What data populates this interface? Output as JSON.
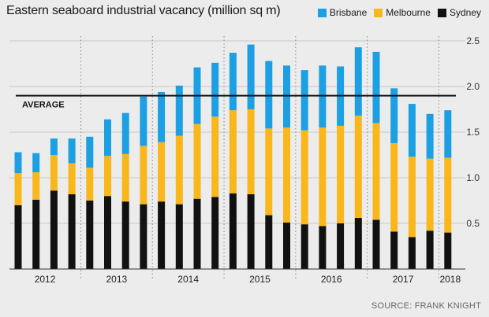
{
  "title": "Eastern seaboard industrial vacancy (million sq m)",
  "source": "SOURCE: FRANK KNIGHT",
  "chart_data": {
    "type": "bar",
    "stacked": true,
    "title": "Eastern seaboard industrial vacancy (million sq m)",
    "xlabel": "",
    "ylabel": "",
    "ylim": [
      0,
      2.5
    ],
    "yticks": [
      "0.5",
      "1.0",
      "1.5",
      "2.0",
      "2.5"
    ],
    "ytick_values": [
      0.5,
      1.0,
      1.5,
      2.0,
      2.5
    ],
    "grid": true,
    "legend_position": "top-right",
    "years": [
      "2012",
      "2013",
      "2014",
      "2015",
      "2016",
      "2017",
      "2018"
    ],
    "categories": [
      "2012 Q1",
      "2012 Q2",
      "2012 Q3",
      "2012 Q4",
      "2013 Q1",
      "2013 Q2",
      "2013 Q3",
      "2013 Q4",
      "2014 Q1",
      "2014 Q2",
      "2014 Q3",
      "2014 Q4",
      "2015 Q1",
      "2015 Q2",
      "2015 Q3",
      "2015 Q4",
      "2016 Q1",
      "2016 Q2",
      "2016 Q3",
      "2016 Q4",
      "2017 Q1",
      "2017 Q2",
      "2017 Q3",
      "2017 Q4",
      "2018 Q1"
    ],
    "series": [
      {
        "name": "Sydney",
        "color": "#111111",
        "values": [
          0.7,
          0.76,
          0.86,
          0.82,
          0.75,
          0.8,
          0.74,
          0.71,
          0.74,
          0.71,
          0.77,
          0.79,
          0.83,
          0.82,
          0.59,
          0.51,
          0.49,
          0.47,
          0.5,
          0.56,
          0.54,
          0.41,
          0.35,
          0.42,
          0.4
        ]
      },
      {
        "name": "Melbourne",
        "color": "#f9b71c",
        "values": [
          0.35,
          0.3,
          0.39,
          0.34,
          0.36,
          0.44,
          0.52,
          0.64,
          0.65,
          0.75,
          0.82,
          0.88,
          0.91,
          0.93,
          0.95,
          1.04,
          1.03,
          1.08,
          1.07,
          1.12,
          1.06,
          0.97,
          0.88,
          0.79,
          0.82
        ]
      },
      {
        "name": "Brisbane",
        "color": "#1d9fe3",
        "values": [
          0.23,
          0.21,
          0.18,
          0.27,
          0.34,
          0.4,
          0.45,
          0.54,
          0.55,
          0.55,
          0.62,
          0.59,
          0.63,
          0.71,
          0.74,
          0.68,
          0.66,
          0.68,
          0.65,
          0.75,
          0.78,
          0.6,
          0.58,
          0.49,
          0.52
        ]
      }
    ],
    "average": {
      "label": "AVERAGE",
      "value": 1.9
    }
  },
  "legend": [
    {
      "name": "Brisbane",
      "color": "#1d9fe3"
    },
    {
      "name": "Melbourne",
      "color": "#f9b71c"
    },
    {
      "name": "Sydney",
      "color": "#111111"
    }
  ]
}
